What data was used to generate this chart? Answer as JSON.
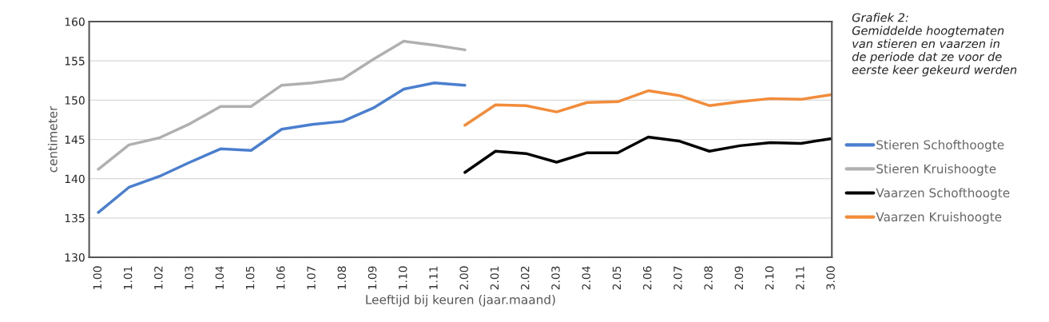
{
  "chart_data": {
    "type": "line",
    "xlabel": "Leeftijd bij keuren (jaar.maand)",
    "ylabel": "centimeter",
    "annotations": [
      "Grafiek 2:\nGemiddelde hoogtematen\nvan stieren en vaarzen in\nde periode dat ze voor de\neerste keer gekeurd werden"
    ],
    "categories": [
      "1.00",
      "1.01",
      "1.02",
      "1.03",
      "1.04",
      "1.05",
      "1.06",
      "1.07",
      "1.08",
      "1.09",
      "1.10",
      "1.11",
      "2.00",
      "2.01",
      "2.02",
      "2.03",
      "2.04",
      "2.05",
      "2.06",
      "2.07",
      "2.08",
      "2.09",
      "2.10",
      "2.11",
      "3.00"
    ],
    "series": [
      {
        "name": "Stieren Schofthoogte",
        "color": "#4a7fd0",
        "values": [
          135.7,
          138.9,
          140.3,
          142.1,
          143.8,
          143.6,
          146.3,
          146.9,
          147.3,
          149.0,
          151.4,
          152.2,
          151.9,
          null,
          null,
          null,
          null,
          null,
          null,
          null,
          null,
          null,
          null,
          null,
          null
        ]
      },
      {
        "name": "Stieren Kruishoogte",
        "color": "#b0b0b0",
        "values": [
          141.2,
          144.3,
          145.2,
          147.0,
          149.2,
          149.2,
          151.9,
          152.2,
          152.7,
          155.2,
          157.5,
          157.0,
          156.4,
          null,
          null,
          null,
          null,
          null,
          null,
          null,
          null,
          null,
          null,
          null,
          null
        ]
      },
      {
        "name": "Vaarzen Schofthoogte",
        "color": "#000000",
        "values": [
          null,
          null,
          null,
          null,
          null,
          null,
          null,
          null,
          null,
          null,
          null,
          null,
          140.8,
          143.5,
          143.2,
          142.1,
          143.3,
          143.3,
          145.3,
          144.8,
          143.5,
          144.2,
          144.6,
          144.5,
          145.1
        ]
      },
      {
        "name": "Vaarzen Kruishoogte",
        "color": "#f28c3a",
        "values": [
          null,
          null,
          null,
          null,
          null,
          null,
          null,
          null,
          null,
          null,
          null,
          null,
          146.8,
          149.4,
          149.3,
          148.5,
          149.7,
          149.8,
          151.2,
          150.6,
          149.3,
          149.8,
          150.2,
          150.1,
          150.7
        ]
      }
    ],
    "ylim": [
      130,
      160
    ],
    "yticks": [
      130,
      135,
      140,
      145,
      150,
      155,
      160
    ],
    "grid": "y",
    "legend": "right",
    "line_style": "solid",
    "marker": "none"
  }
}
